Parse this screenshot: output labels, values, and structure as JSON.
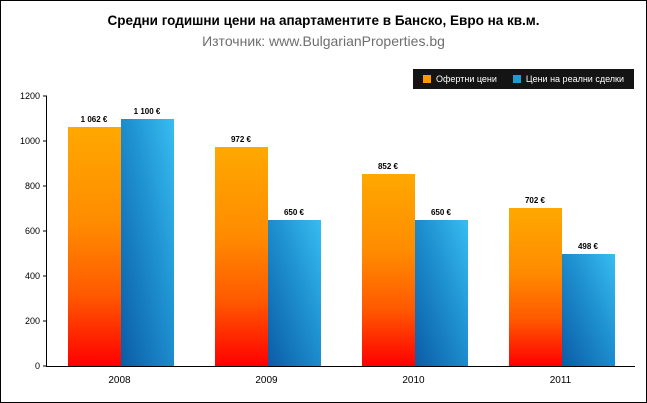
{
  "title": "Средни годишни цени на апартаментите в Банско, Евро на кв.м.",
  "subtitle": "Източник: www.BulgarianProperties.bg",
  "legend": [
    {
      "label": "Офертни цени",
      "color": "#FF9900"
    },
    {
      "label": "Цени на реални сделки",
      "color": "#1E9AD6"
    }
  ],
  "chart_data": {
    "type": "bar",
    "categories": [
      "2008",
      "2009",
      "2010",
      "2011"
    ],
    "series": [
      {
        "name": "Офертни цени",
        "values": [
          1062,
          972,
          852,
          702
        ],
        "labels": [
          "1 062 €",
          "972 €",
          "852 €",
          "702 €"
        ],
        "color": "#FF9900"
      },
      {
        "name": "Цени на реални сделки",
        "values": [
          1100,
          650,
          650,
          498
        ],
        "labels": [
          "1 100 €",
          "650 €",
          "650 €",
          "498 €"
        ],
        "color": "#1E9AD6"
      }
    ],
    "title": "Средни годишни цени на апартаментите в Банско, Евро на кв.м.",
    "xlabel": "",
    "ylabel": "",
    "ylim": [
      0,
      1200
    ],
    "yticks": [
      0,
      200,
      400,
      600,
      800,
      1000,
      1200
    ],
    "grid": false,
    "legend_position": "top-right"
  }
}
